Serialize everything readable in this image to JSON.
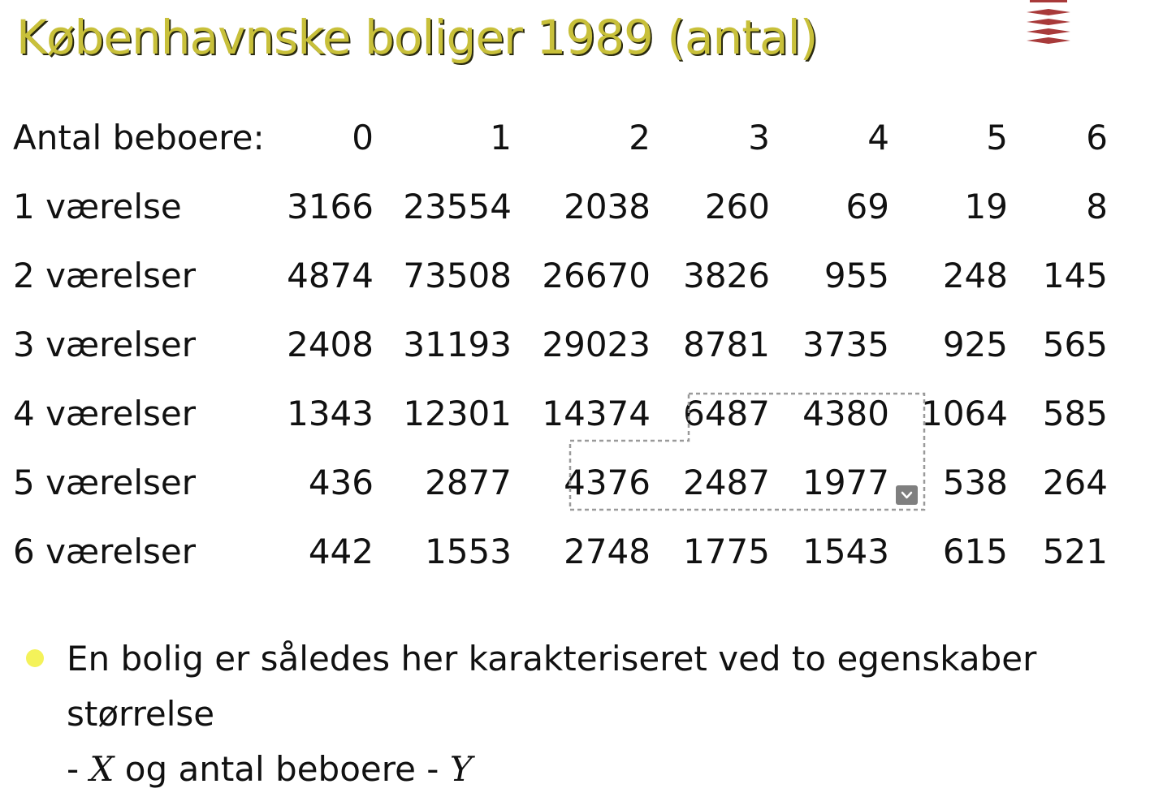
{
  "title": "Københavnske boliger 1989 (antal)",
  "header": {
    "label": "Antal beboere:",
    "columns": [
      "0",
      "1",
      "2",
      "3",
      "4",
      "5",
      "6"
    ]
  },
  "rows": [
    {
      "label": "1 værelse",
      "values": [
        "3166",
        "23554",
        "2038",
        "260",
        "69",
        "19",
        "8"
      ]
    },
    {
      "label": "2 værelser",
      "values": [
        "4874",
        "73508",
        "26670",
        "3826",
        "955",
        "248",
        "145"
      ]
    },
    {
      "label": "3 værelser",
      "values": [
        "2408",
        "31193",
        "29023",
        "8781",
        "3735",
        "925",
        "565"
      ]
    },
    {
      "label": "4 værelser",
      "values": [
        "1343",
        "12301",
        "14374",
        "6487",
        "4380",
        "1064",
        "585"
      ]
    },
    {
      "label": "5 værelser",
      "values": [
        "436",
        "2877",
        "4376",
        "2487",
        "1977",
        "538",
        "264"
      ]
    },
    {
      "label": "6 værelser",
      "values": [
        "442",
        "1553",
        "2748",
        "1775",
        "1543",
        "615",
        "521"
      ]
    }
  ],
  "bullet": {
    "line1": "En bolig er således her karakteriseret ved to egenskaber størrelse",
    "line2_prefix": "- ",
    "var_x": "X",
    "line2_middle": " og antal beboere - ",
    "var_y": "Y"
  },
  "colors": {
    "title": "#c8c03a",
    "title_shadow": "#2a2a10",
    "logo": "#a83a3a",
    "bullet": "#f4f25a",
    "selection_border": "#9a9a9a",
    "dropdown": "#7f7f7f"
  },
  "icons": {
    "logo": "towers-logo-icon",
    "dropdown": "chevron-down-icon",
    "bullet": "bullet-dot-icon"
  }
}
